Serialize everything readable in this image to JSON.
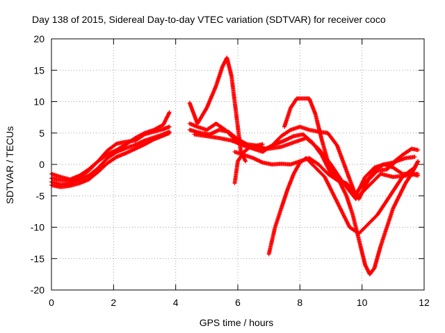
{
  "chart_data": {
    "type": "scatter",
    "title": "Day 138 of 2015, Sidereal Day-to-day VTEC variation (SDTVAR) for receiver coco",
    "xlabel": "GPS time / hours",
    "ylabel": "SDTVAR / TECUs",
    "xlim": [
      0,
      12
    ],
    "ylim": [
      -20,
      20
    ],
    "xticks": [
      0,
      2,
      4,
      6,
      8,
      10,
      12
    ],
    "yticks": [
      -20,
      -15,
      -10,
      -5,
      0,
      5,
      10,
      15,
      20
    ],
    "grid": true,
    "marker": "+",
    "color": "#ff0000",
    "series": [
      {
        "x": [
          0.0,
          0.3,
          0.6,
          0.9,
          1.2,
          1.5,
          1.8,
          2.1,
          2.4,
          2.7,
          3.0,
          3.3,
          3.6,
          3.8
        ],
        "y": [
          -1.5,
          -2.0,
          -2.4,
          -1.8,
          -0.8,
          0.5,
          1.6,
          2.3,
          3.2,
          4.2,
          5.0,
          5.5,
          6.3,
          8.3
        ]
      },
      {
        "x": [
          0.0,
          0.3,
          0.6,
          0.9,
          1.2,
          1.5,
          1.8,
          2.1,
          2.4,
          2.7,
          3.0,
          3.3,
          3.6,
          3.8
        ],
        "y": [
          -2.2,
          -2.5,
          -2.6,
          -2.0,
          -1.0,
          0.5,
          2.2,
          3.3,
          3.6,
          3.8,
          4.8,
          5.2,
          5.6,
          6.0
        ]
      },
      {
        "x": [
          0.0,
          0.3,
          0.6,
          0.9,
          1.2,
          1.5,
          1.8,
          2.1,
          2.4,
          2.7,
          3.0,
          3.3,
          3.6,
          3.8
        ],
        "y": [
          -2.8,
          -3.2,
          -3.0,
          -2.4,
          -1.8,
          -0.6,
          1.0,
          2.0,
          2.6,
          3.1,
          3.8,
          4.3,
          4.8,
          5.2
        ]
      },
      {
        "x": [
          0.0,
          0.3,
          0.6,
          0.9,
          1.2,
          1.5,
          1.8,
          2.1,
          2.4,
          2.7,
          3.0,
          3.3,
          3.6,
          3.8
        ],
        "y": [
          -3.3,
          -3.6,
          -3.4,
          -3.0,
          -2.4,
          -1.2,
          0.2,
          1.2,
          1.8,
          2.5,
          3.2,
          4.0,
          4.6,
          5.0
        ]
      },
      {
        "x": [
          4.45,
          4.7,
          5.0,
          5.3,
          5.5,
          5.65,
          5.8,
          5.95,
          6.1,
          6.25
        ],
        "y": [
          9.8,
          6.5,
          9.0,
          12.5,
          15.5,
          17.0,
          14.0,
          8.0,
          2.0,
          0.5
        ]
      },
      {
        "x": [
          5.9,
          6.0,
          6.2,
          6.4,
          6.6,
          6.8
        ],
        "y": [
          -3.0,
          0.5,
          2.0,
          2.8,
          3.0,
          3.2
        ]
      },
      {
        "x": [
          4.45,
          4.7,
          5.0,
          5.3,
          5.6,
          5.9,
          6.2,
          6.5,
          6.8,
          7.1,
          7.4,
          7.7,
          8.0,
          8.3,
          8.6,
          8.9,
          9.2,
          9.5,
          9.8,
          10.1,
          10.4,
          10.7,
          11.0,
          11.3,
          11.6,
          11.8
        ],
        "y": [
          6.5,
          6.0,
          5.5,
          6.5,
          5.5,
          4.0,
          3.0,
          2.5,
          2.0,
          3.0,
          4.5,
          5.5,
          6.0,
          5.5,
          5.2,
          5.0,
          3.0,
          -1.0,
          -5.0,
          -2.0,
          -0.5,
          0.0,
          0.3,
          1.5,
          2.5,
          2.3
        ]
      },
      {
        "x": [
          4.45,
          4.8,
          5.1,
          5.4,
          5.7,
          6.0,
          6.3,
          6.6,
          6.9,
          7.2,
          7.5,
          7.8,
          8.1,
          8.4,
          8.7,
          9.0,
          9.3,
          9.6,
          9.9,
          10.2,
          10.5,
          10.8,
          11.1,
          11.4,
          11.7
        ],
        "y": [
          5.5,
          5.0,
          4.8,
          5.5,
          5.2,
          4.0,
          3.2,
          3.0,
          2.5,
          3.2,
          3.8,
          4.5,
          4.8,
          3.5,
          1.5,
          -1.5,
          -2.5,
          -3.5,
          -5.5,
          -2.5,
          -1.0,
          -0.8,
          0.5,
          1.0,
          1.2
        ]
      },
      {
        "x": [
          4.6,
          5.0,
          5.4,
          5.8,
          6.2,
          6.6,
          7.0,
          7.4,
          7.8,
          8.2,
          8.6,
          9.0,
          9.4,
          9.8,
          10.2,
          10.6,
          11.0,
          11.4,
          11.8
        ],
        "y": [
          4.8,
          4.5,
          4.2,
          3.8,
          3.0,
          2.5,
          2.5,
          2.8,
          3.5,
          4.2,
          2.5,
          0.0,
          -3.0,
          -5.5,
          -3.5,
          -1.5,
          -2.0,
          -1.8,
          -1.5
        ]
      },
      {
        "x": [
          5.9,
          6.2,
          6.5,
          6.8,
          7.1,
          7.4,
          7.7,
          8.0,
          8.3,
          8.6,
          8.9,
          9.2,
          9.5,
          9.8,
          10.1,
          10.4,
          10.7,
          11.0,
          11.3,
          11.6,
          11.8
        ],
        "y": [
          2.0,
          1.5,
          1.0,
          0.3,
          0.0,
          0.1,
          0.0,
          0.5,
          1.0,
          0.0,
          -1.5,
          -2.5,
          -3.0,
          -4.5,
          -3.0,
          -1.0,
          0.0,
          -0.5,
          -1.5,
          -1.5,
          -1.8
        ]
      },
      {
        "x": [
          7.0,
          7.2,
          7.4,
          7.6,
          7.8,
          8.0,
          8.2,
          8.4,
          8.6,
          8.8,
          9.0,
          9.3,
          9.6,
          9.9,
          10.1,
          10.3,
          10.5,
          10.7,
          10.9,
          11.1,
          11.3,
          11.5,
          11.7,
          11.8
        ],
        "y": [
          -14.3,
          -10.0,
          -7.0,
          -4.0,
          -1.5,
          0.3,
          1.0,
          0.0,
          -1.0,
          -2.0,
          -4.0,
          -7.0,
          -10.0,
          -11.0,
          -10.0,
          -9.0,
          -8.0,
          -6.5,
          -5.0,
          -3.5,
          -2.0,
          -1.2,
          -0.5,
          0.5
        ]
      },
      {
        "x": [
          7.5,
          7.7,
          7.9,
          8.1,
          8.3,
          8.5,
          8.7,
          8.9,
          9.1,
          9.3,
          9.5,
          9.7,
          9.9,
          10.1,
          10.25,
          10.4,
          10.6,
          10.8,
          11.0,
          11.2,
          11.4,
          11.6,
          11.8
        ],
        "y": [
          6.0,
          9.0,
          10.5,
          10.5,
          10.5,
          8.0,
          4.0,
          0.5,
          -1.5,
          -3.0,
          -5.0,
          -8.0,
          -12.0,
          -16.0,
          -17.5,
          -16.5,
          -13.0,
          -10.0,
          -7.0,
          -5.0,
          -3.0,
          -1.5,
          0.5
        ]
      }
    ]
  }
}
